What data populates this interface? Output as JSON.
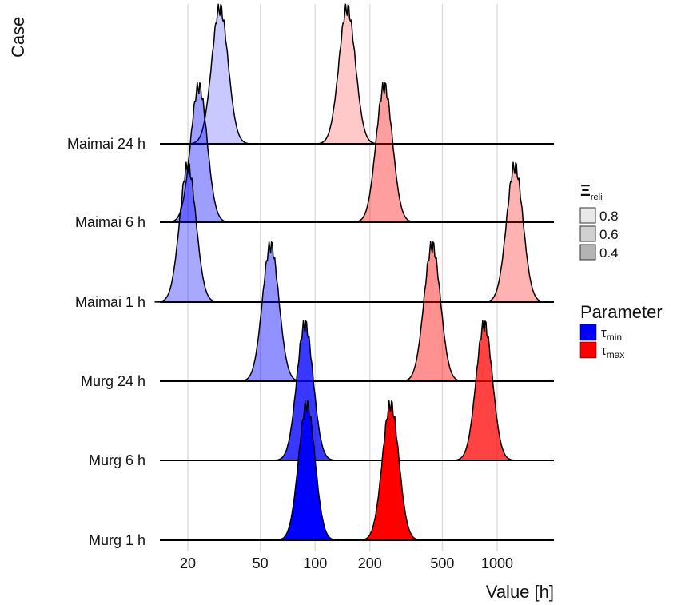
{
  "chart_data": {
    "type": "area",
    "ylabel": "Case",
    "xlabel": "Value [h]",
    "x_scale": "log10",
    "xlim": [
      15,
      1800
    ],
    "x_ticks": [
      20,
      50,
      100,
      200,
      500,
      1000
    ],
    "x_tick_labels": [
      "20",
      "50",
      "100",
      "200",
      "500",
      "1000"
    ],
    "grid": true,
    "categories": [
      "Murg 1 h",
      "Murg 6 h",
      "Murg 24 h",
      "Maimai 1 h",
      "Maimai 6 h",
      "Maimai 24 h"
    ],
    "series": [
      {
        "name": "τmin",
        "color": "#0000ff",
        "distributions": [
          {
            "case": "Murg 1 h",
            "mode": 90,
            "reliability": 1.0
          },
          {
            "case": "Murg 6 h",
            "mode": 88,
            "reliability": 0.75
          },
          {
            "case": "Murg 24 h",
            "mode": 57,
            "reliability": 0.35
          },
          {
            "case": "Maimai 1 h",
            "mode": 20,
            "reliability": 0.25
          },
          {
            "case": "Maimai 6 h",
            "mode": 23,
            "reliability": 0.3
          },
          {
            "case": "Maimai 24 h",
            "mode": 30,
            "reliability": 0.1
          }
        ]
      },
      {
        "name": "τmax",
        "color": "#ff0000",
        "distributions": [
          {
            "case": "Murg 1 h",
            "mode": 260,
            "reliability": 1.0
          },
          {
            "case": "Murg 6 h",
            "mode": 850,
            "reliability": 0.7
          },
          {
            "case": "Murg 24 h",
            "mode": 440,
            "reliability": 0.35
          },
          {
            "case": "Maimai 1 h",
            "mode": 1250,
            "reliability": 0.2
          },
          {
            "case": "Maimai 6 h",
            "mode": 240,
            "reliability": 0.3
          },
          {
            "case": "Maimai 24 h",
            "mode": 150,
            "reliability": 0.1
          }
        ]
      }
    ],
    "legend": {
      "reliability_title": "Ξ",
      "reliability_title_sub": "reli",
      "reliability_entries": [
        {
          "label": "0.8",
          "color": "#e8e8e8"
        },
        {
          "label": "0.6",
          "color": "#d0d0d0"
        },
        {
          "label": "0.4",
          "color": "#b4b4b4"
        }
      ],
      "parameter_title": "Parameter",
      "parameter_entries": [
        {
          "symbol": "τ",
          "sub": "min",
          "color": "#0000ff"
        },
        {
          "symbol": "τ",
          "sub": "max",
          "color": "#ff0000"
        }
      ],
      "placement": "right"
    }
  }
}
